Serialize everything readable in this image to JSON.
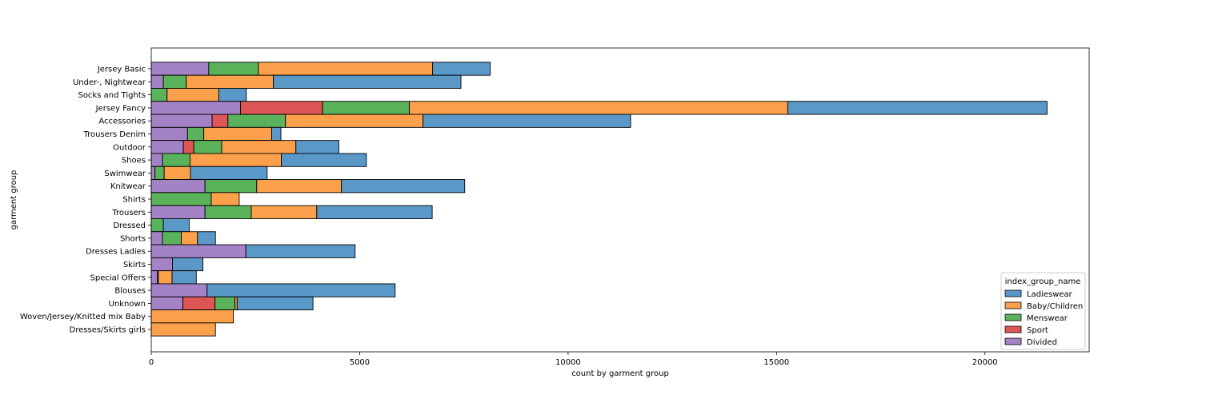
{
  "chart_data": {
    "type": "bar",
    "orientation": "horizontal",
    "stacked": true,
    "xlabel": "count by garment group",
    "ylabel": "garment group",
    "xlim": [
      0,
      22500
    ],
    "x_ticks": [
      0,
      5000,
      10000,
      15000,
      20000
    ],
    "grid": false,
    "legend": {
      "title": "index_group_name",
      "placement": "lower-right"
    },
    "categories": [
      "Jersey Basic",
      "Under-, Nightwear",
      "Socks and Tights",
      "Jersey Fancy",
      "Accessories",
      "Trousers Denim",
      "Outdoor",
      "Shoes",
      "Swimwear",
      "Knitwear",
      "Shirts",
      "Trousers",
      "Dressed",
      "Shorts",
      "Dresses Ladies",
      "Skirts",
      "Special Offers",
      "Blouses",
      "Unknown",
      "Woven/Jersey/Knitted mix Baby",
      "Dresses/Skirts girls"
    ],
    "series": [
      {
        "name": "Divided",
        "color": "#a482c6",
        "values": [
          1380,
          290,
          0,
          2140,
          1460,
          870,
          770,
          270,
          90,
          1290,
          0,
          1290,
          0,
          270,
          2270,
          510,
          150,
          1340,
          760,
          0,
          0
        ]
      },
      {
        "name": "Sport",
        "color": "#dd5555",
        "values": [
          0,
          0,
          0,
          1970,
          380,
          0,
          250,
          0,
          0,
          0,
          0,
          0,
          0,
          0,
          0,
          0,
          20,
          0,
          770,
          0,
          0
        ]
      },
      {
        "name": "Menswear",
        "color": "#5ab25a",
        "values": [
          1190,
          550,
          380,
          2080,
          1380,
          390,
          670,
          660,
          220,
          1240,
          1440,
          1110,
          290,
          450,
          0,
          0,
          0,
          0,
          480,
          0,
          0
        ]
      },
      {
        "name": "Baby/Children",
        "color": "#fca04c",
        "values": [
          4180,
          2090,
          1240,
          9080,
          3300,
          1630,
          1780,
          2190,
          630,
          2030,
          670,
          1570,
          0,
          390,
          0,
          0,
          330,
          0,
          50,
          1970,
          1540
        ]
      },
      {
        "name": "Ladieswear",
        "color": "#5a98c8",
        "values": [
          1380,
          4500,
          660,
          6220,
          4980,
          220,
          1030,
          2040,
          1840,
          2960,
          0,
          2770,
          620,
          430,
          2620,
          730,
          580,
          4510,
          1820,
          0,
          0
        ]
      }
    ]
  }
}
